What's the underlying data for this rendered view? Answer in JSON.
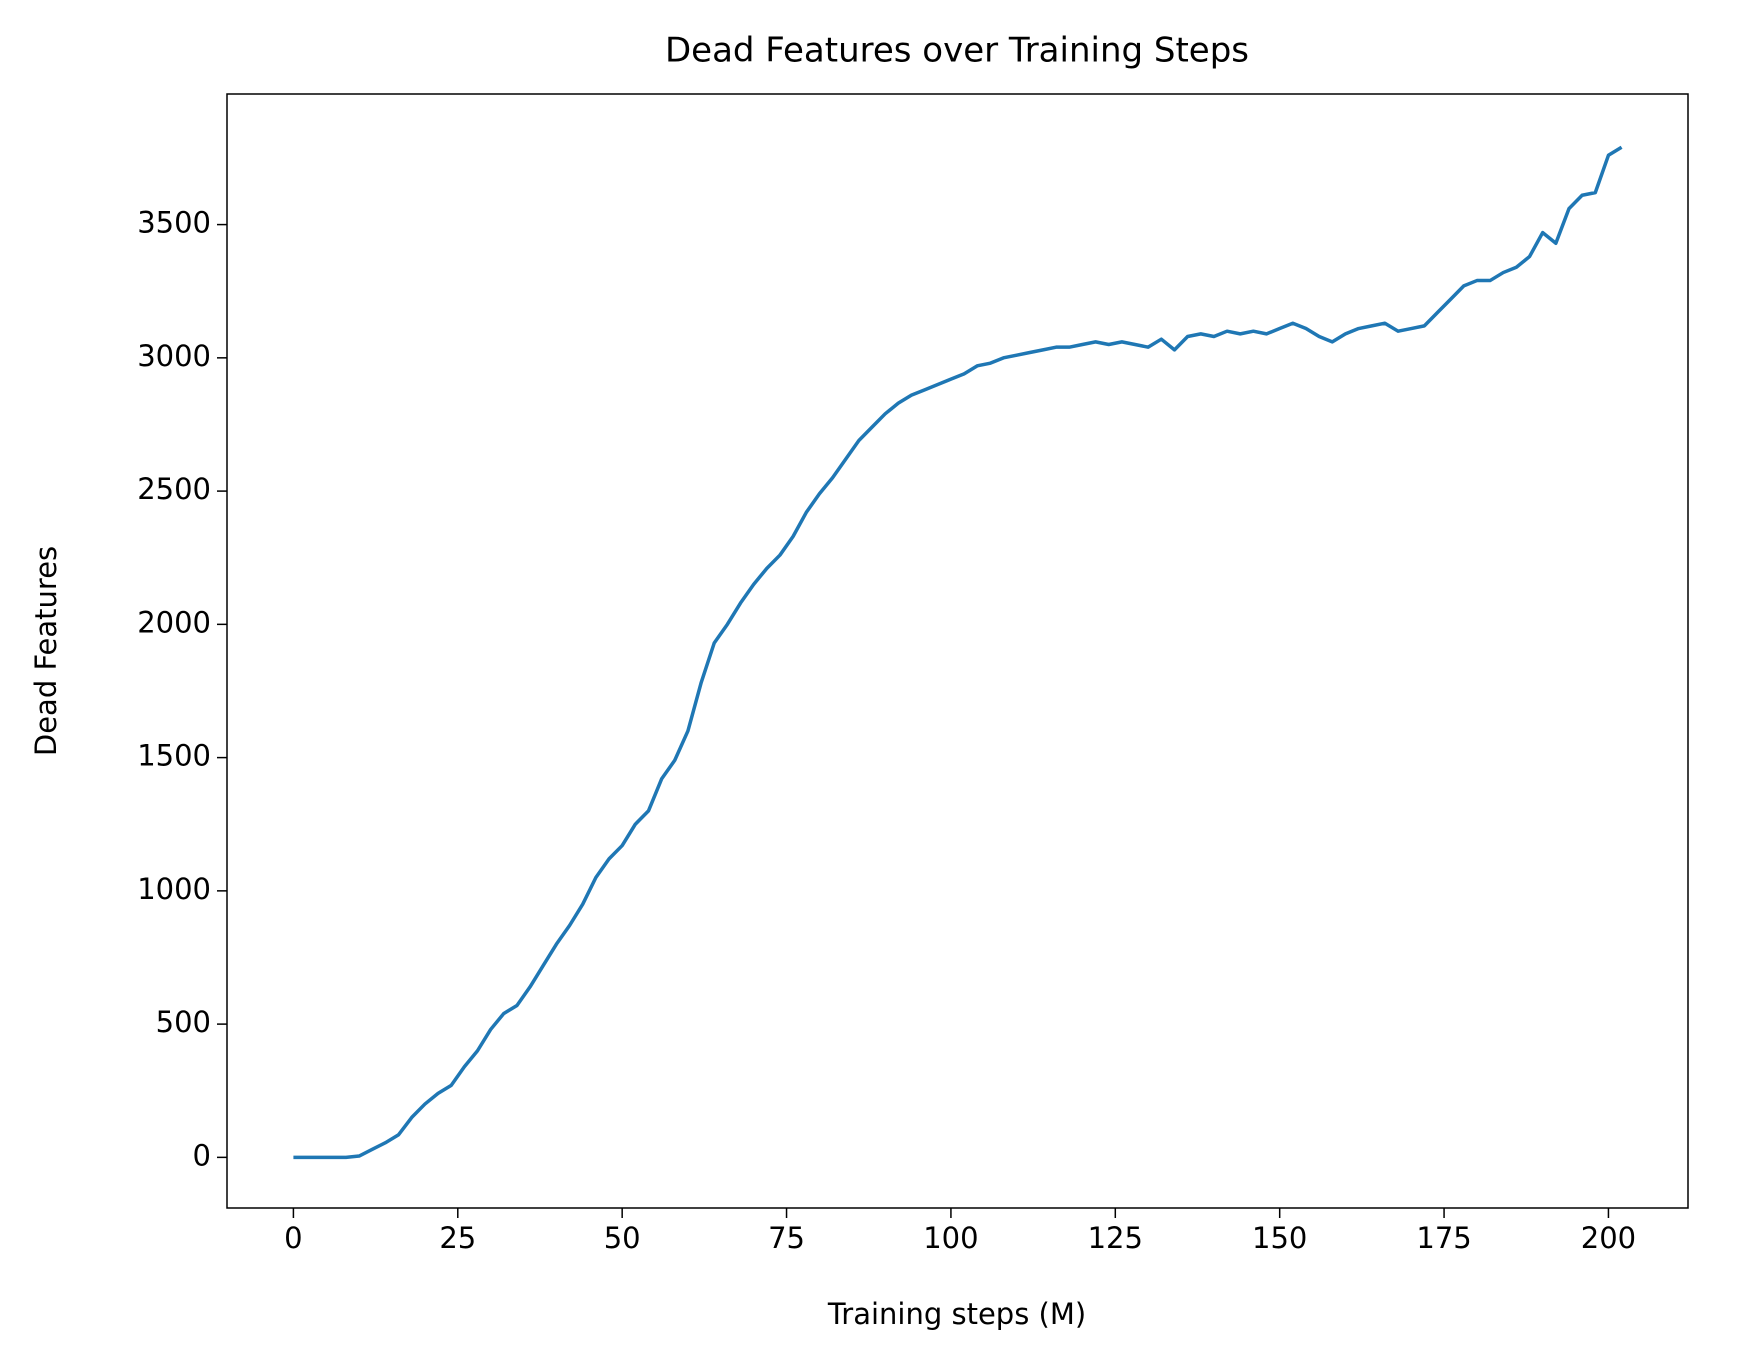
{
  "chart_data": {
    "type": "line",
    "title": "Dead Features over Training Steps",
    "x_label": "Training steps (M)",
    "y_label": "Dead Features",
    "x": [
      0,
      2,
      4,
      6,
      8,
      10,
      12,
      14,
      16,
      18,
      20,
      22,
      24,
      26,
      28,
      30,
      32,
      34,
      36,
      38,
      40,
      42,
      44,
      46,
      48,
      50,
      52,
      54,
      56,
      58,
      60,
      62,
      64,
      66,
      68,
      70,
      72,
      74,
      76,
      78,
      80,
      82,
      84,
      86,
      88,
      90,
      92,
      94,
      96,
      98,
      100,
      102,
      104,
      106,
      108,
      110,
      112,
      114,
      116,
      118,
      120,
      122,
      124,
      126,
      128,
      130,
      132,
      134,
      136,
      138,
      140,
      142,
      144,
      146,
      148,
      150,
      152,
      154,
      156,
      158,
      160,
      162,
      164,
      166,
      168,
      170,
      172,
      174,
      176,
      178,
      180,
      182,
      184,
      186,
      188,
      190,
      192,
      194,
      196,
      198,
      200,
      202
    ],
    "series": [
      {
        "name": "Dead Features",
        "color": "#1f77b4",
        "values": [
          0,
          0,
          0,
          0,
          0,
          5,
          30,
          55,
          85,
          150,
          200,
          240,
          270,
          340,
          400,
          480,
          540,
          570,
          640,
          720,
          800,
          870,
          950,
          1050,
          1120,
          1170,
          1250,
          1300,
          1420,
          1490,
          1600,
          1780,
          1930,
          2000,
          2080,
          2150,
          2210,
          2260,
          2330,
          2420,
          2490,
          2550,
          2620,
          2690,
          2740,
          2790,
          2830,
          2860,
          2880,
          2900,
          2920,
          2940,
          2970,
          2980,
          3000,
          3010,
          3020,
          3030,
          3040,
          3040,
          3050,
          3060,
          3050,
          3060,
          3050,
          3040,
          3070,
          3030,
          3080,
          3090,
          3080,
          3100,
          3090,
          3100,
          3090,
          3110,
          3130,
          3110,
          3080,
          3060,
          3090,
          3110,
          3120,
          3130,
          3100,
          3110,
          3120,
          3170,
          3220,
          3270,
          3290,
          3290,
          3320,
          3340,
          3380,
          3470,
          3430,
          3560,
          3610,
          3620,
          3760,
          3790
        ]
      }
    ],
    "xlim": [
      -10.1,
      212.1
    ],
    "ylim": [
      -190,
      3990
    ],
    "xticks": [
      0,
      25,
      50,
      75,
      100,
      125,
      150,
      175,
      200
    ],
    "yticks": [
      0,
      500,
      1000,
      1500,
      2000,
      2500,
      3000,
      3500
    ],
    "grid": false
  }
}
